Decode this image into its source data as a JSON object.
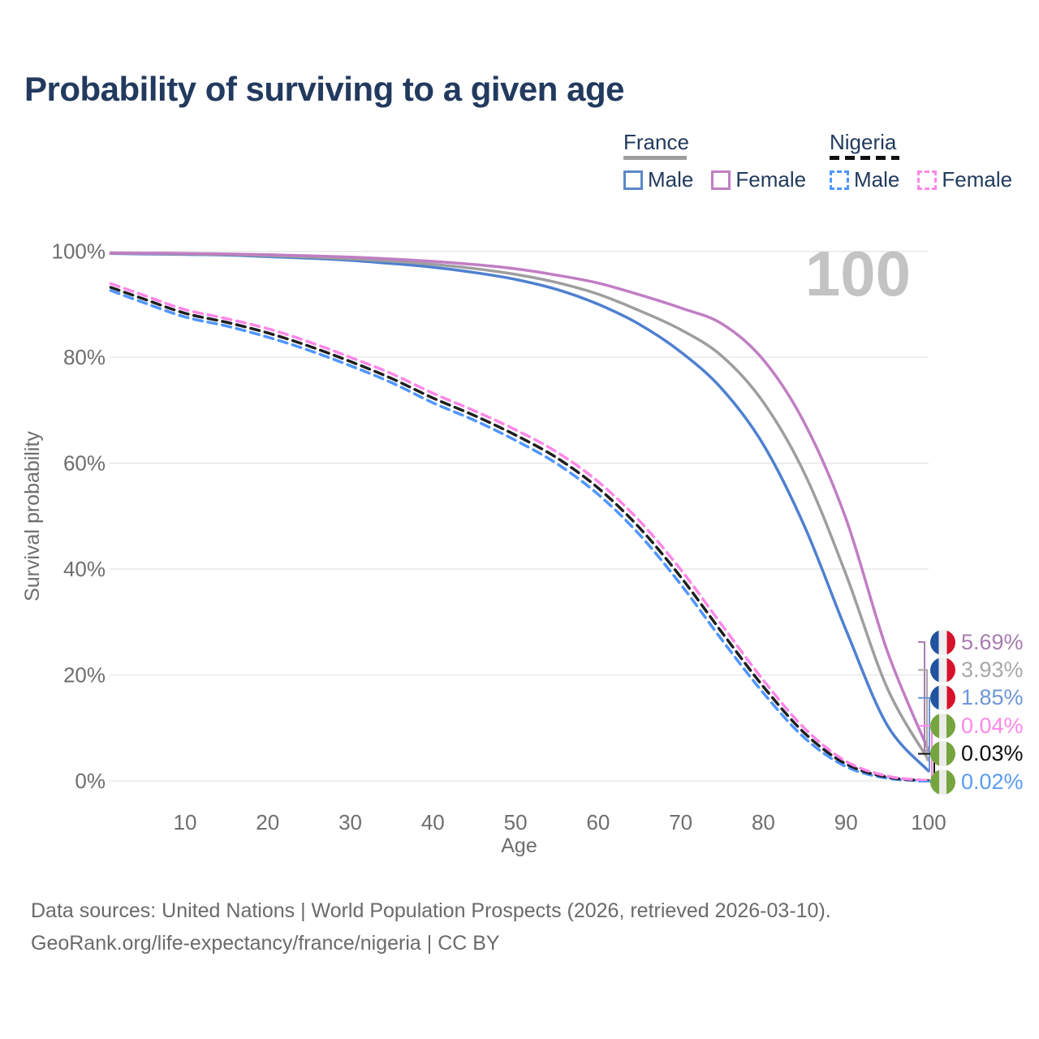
{
  "page": {
    "title": "Probability of surviving to a given age"
  },
  "legend": {
    "groups": [
      {
        "id": "france",
        "label": "France",
        "underline_style": "solid",
        "items": [
          {
            "label": "Male"
          },
          {
            "label": "Female"
          }
        ]
      },
      {
        "id": "nigeria",
        "label": "Nigeria",
        "underline_style": "dashed",
        "items": [
          {
            "label": "Male"
          },
          {
            "label": "Female"
          }
        ]
      }
    ]
  },
  "chart_data": {
    "type": "line",
    "title": "Probability of surviving to a given age",
    "xlabel": "Age",
    "ylabel": "Survival probability",
    "xlim": [
      1,
      100
    ],
    "ylim": [
      0,
      100
    ],
    "grid": "horizontal",
    "legend_position": "top-right",
    "watermark": "100",
    "x_ticks": [
      10,
      20,
      30,
      40,
      50,
      60,
      70,
      80,
      90,
      100
    ],
    "y_ticks": [
      0,
      20,
      40,
      60,
      80,
      100
    ],
    "y_tick_suffix": "%",
    "ages": [
      1,
      5,
      10,
      15,
      20,
      25,
      30,
      35,
      40,
      45,
      50,
      55,
      60,
      65,
      70,
      75,
      80,
      85,
      90,
      95,
      100
    ],
    "series": [
      {
        "id": "france-male",
        "country": "France",
        "sex": "male",
        "color": "#4e80d0",
        "dash": false,
        "values": [
          99.6,
          99.5,
          99.4,
          99.3,
          99.0,
          98.7,
          98.3,
          97.7,
          97.0,
          96.0,
          94.7,
          92.8,
          90.0,
          86.2,
          81.0,
          74.0,
          63.5,
          48.0,
          28.5,
          10.5,
          1.85
        ]
      },
      {
        "id": "france-both",
        "country": "France",
        "sex": "both",
        "color": "#9e9e9e",
        "dash": false,
        "values": [
          99.65,
          99.58,
          99.5,
          99.4,
          99.18,
          98.93,
          98.6,
          98.13,
          97.55,
          96.75,
          95.65,
          94.1,
          91.9,
          88.8,
          85.2,
          80.2,
          71.5,
          58.0,
          39.0,
          17.5,
          3.93
        ]
      },
      {
        "id": "france-female",
        "country": "France",
        "sex": "female",
        "color": "#c07ec3",
        "dash": false,
        "values": [
          99.7,
          99.65,
          99.6,
          99.5,
          99.35,
          99.15,
          98.9,
          98.55,
          98.1,
          97.5,
          96.7,
          95.5,
          94.0,
          91.8,
          89.3,
          86.3,
          79.5,
          67.5,
          49.5,
          24.5,
          5.69
        ]
      },
      {
        "id": "nigeria-male",
        "country": "Nigeria",
        "sex": "male",
        "color": "#4f96ff",
        "dash": true,
        "values": [
          92.6,
          90.3,
          87.6,
          85.9,
          83.8,
          81.3,
          78.4,
          75.2,
          71.4,
          68.1,
          64.3,
          59.9,
          54.1,
          46.5,
          37.1,
          26.6,
          16.6,
          8.1,
          2.7,
          0.5,
          0.02
        ]
      },
      {
        "id": "nigeria-both",
        "country": "Nigeria",
        "sex": "both",
        "color": "#1f1f1f",
        "dash": true,
        "values": [
          93.2,
          91.0,
          88.3,
          86.6,
          84.6,
          82.1,
          79.2,
          76.0,
          72.3,
          69.0,
          65.3,
          61.0,
          55.3,
          47.8,
          38.5,
          28.0,
          17.8,
          9.0,
          3.2,
          0.7,
          0.03
        ]
      },
      {
        "id": "nigeria-female",
        "country": "Nigeria",
        "sex": "female",
        "color": "#ff87e8",
        "dash": true,
        "values": [
          93.9,
          91.7,
          89.0,
          87.3,
          85.4,
          82.9,
          80.0,
          76.9,
          73.2,
          69.9,
          66.3,
          62.1,
          56.5,
          49.1,
          39.9,
          29.4,
          19.0,
          9.9,
          3.7,
          0.9,
          0.04
        ]
      }
    ],
    "end_labels": [
      {
        "series": "france-female",
        "flag": "france",
        "text": "5.69%",
        "color": "#a87cb0"
      },
      {
        "series": "france-both",
        "flag": "france",
        "text": "3.93%",
        "color": "#a8a8a8"
      },
      {
        "series": "france-male",
        "flag": "france",
        "text": "1.85%",
        "color": "#6e96d8"
      },
      {
        "series": "nigeria-female",
        "flag": "nigeria",
        "text": "0.04%",
        "color": "#ff87e8"
      },
      {
        "series": "nigeria-both",
        "flag": "nigeria",
        "text": "0.03%",
        "color": "#111111"
      },
      {
        "series": "nigeria-male",
        "flag": "nigeria",
        "text": "0.02%",
        "color": "#5b9bf5"
      }
    ]
  },
  "footer": {
    "line1": "Data sources: United Nations | World Population Prospects (2026, retrieved 2026-03-10).",
    "line2": "GeoRank.org/life-expectancy/france/nigeria | CC BY"
  }
}
